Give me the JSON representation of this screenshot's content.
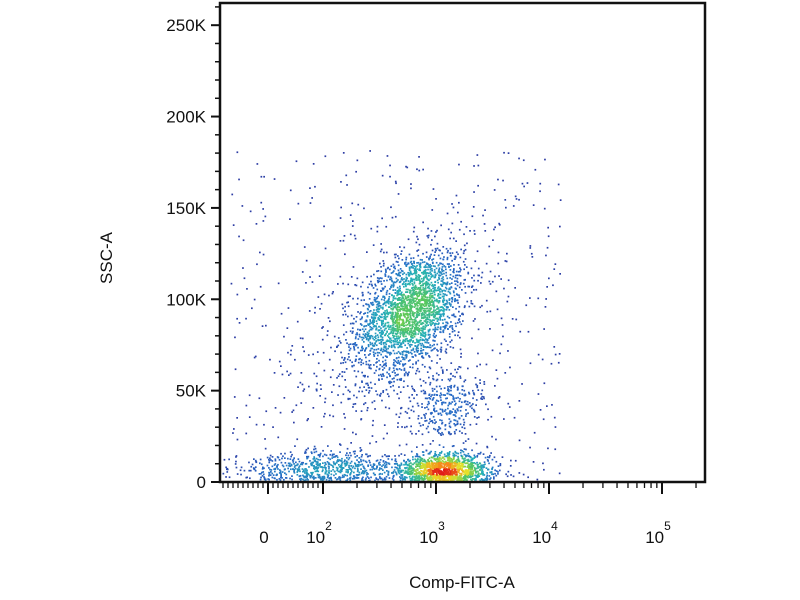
{
  "chart_data": {
    "type": "scatter",
    "xlabel": "Comp-FITC-A",
    "ylabel": "SSC-A",
    "x_scale": "biexponential (logicle)",
    "ylim": [
      0,
      262144
    ],
    "y_ticks": [
      {
        "value": 0,
        "label": "0"
      },
      {
        "value": 50000,
        "label": "50K"
      },
      {
        "value": 100000,
        "label": "100K"
      },
      {
        "value": 150000,
        "label": "150K"
      },
      {
        "value": 200000,
        "label": "200K"
      },
      {
        "value": 250000,
        "label": "250K"
      }
    ],
    "x_ticks": [
      {
        "value": 0,
        "base": "0",
        "exp": ""
      },
      {
        "value": 100,
        "base": "10",
        "exp": "2"
      },
      {
        "value": 1000,
        "base": "10",
        "exp": "3"
      },
      {
        "value": 10000,
        "base": "10",
        "exp": "4"
      },
      {
        "value": 100000,
        "base": "10",
        "exp": "5"
      }
    ],
    "color_scale": "density (blue low → green → yellow → red high)",
    "grid": false,
    "legend": "none",
    "populations": [
      {
        "comp_fitc_a": 600,
        "ssc_a": 95000,
        "events": 2300,
        "peak_color": "yellow"
      },
      {
        "comp_fitc_a": 1150,
        "ssc_a": 7000,
        "events": 1300,
        "peak_color": "red"
      },
      {
        "comp_fitc_a": 80,
        "ssc_a": 8000,
        "events": 650,
        "peak_color": "blue"
      },
      {
        "comp_fitc_a": 1300,
        "ssc_a": 42000,
        "events": 300,
        "peak_color": "blue"
      },
      {
        "comp_fitc_a": 300,
        "ssc_a": 60000,
        "events": 250,
        "peak_color": "blue"
      }
    ]
  }
}
